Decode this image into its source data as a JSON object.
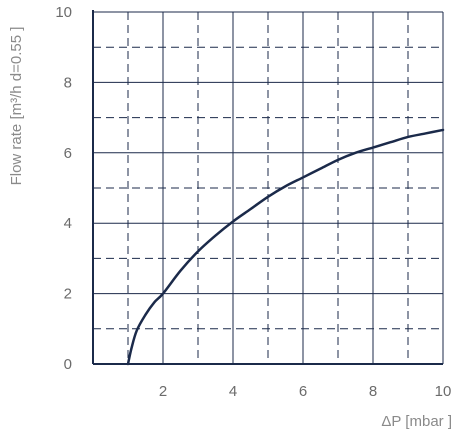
{
  "chart_data": {
    "type": "line",
    "title": "",
    "xlabel": "ΔP [mbar ]",
    "ylabel": "Flow rate [m³/h d=0.55 ]",
    "xlim": [
      0,
      10
    ],
    "ylim": [
      0,
      10
    ],
    "x_ticks": [
      2,
      4,
      6,
      8,
      10
    ],
    "y_ticks": [
      0,
      2,
      4,
      6,
      8,
      10
    ],
    "grid": true,
    "legend": "none",
    "colors": {
      "curve": "#1b2a4a",
      "grid": "#1b2a4a",
      "axis": "#1b2a4a",
      "tick_text": "#6b6b6b",
      "label_text": "#8a8a8a"
    },
    "series": [
      {
        "x": [
          1.0,
          1.1,
          1.25,
          1.5,
          1.75,
          2.0,
          2.5,
          3.0,
          3.5,
          4.0,
          4.5,
          5.0,
          5.5,
          6.0,
          6.5,
          7.0,
          7.5,
          8.0,
          8.5,
          9.0,
          9.5,
          10.0
        ],
        "y": [
          0.0,
          0.45,
          0.95,
          1.4,
          1.75,
          2.0,
          2.65,
          3.2,
          3.65,
          4.05,
          4.4,
          4.75,
          5.05,
          5.3,
          5.55,
          5.8,
          6.0,
          6.15,
          6.3,
          6.45,
          6.55,
          6.65
        ]
      }
    ]
  }
}
